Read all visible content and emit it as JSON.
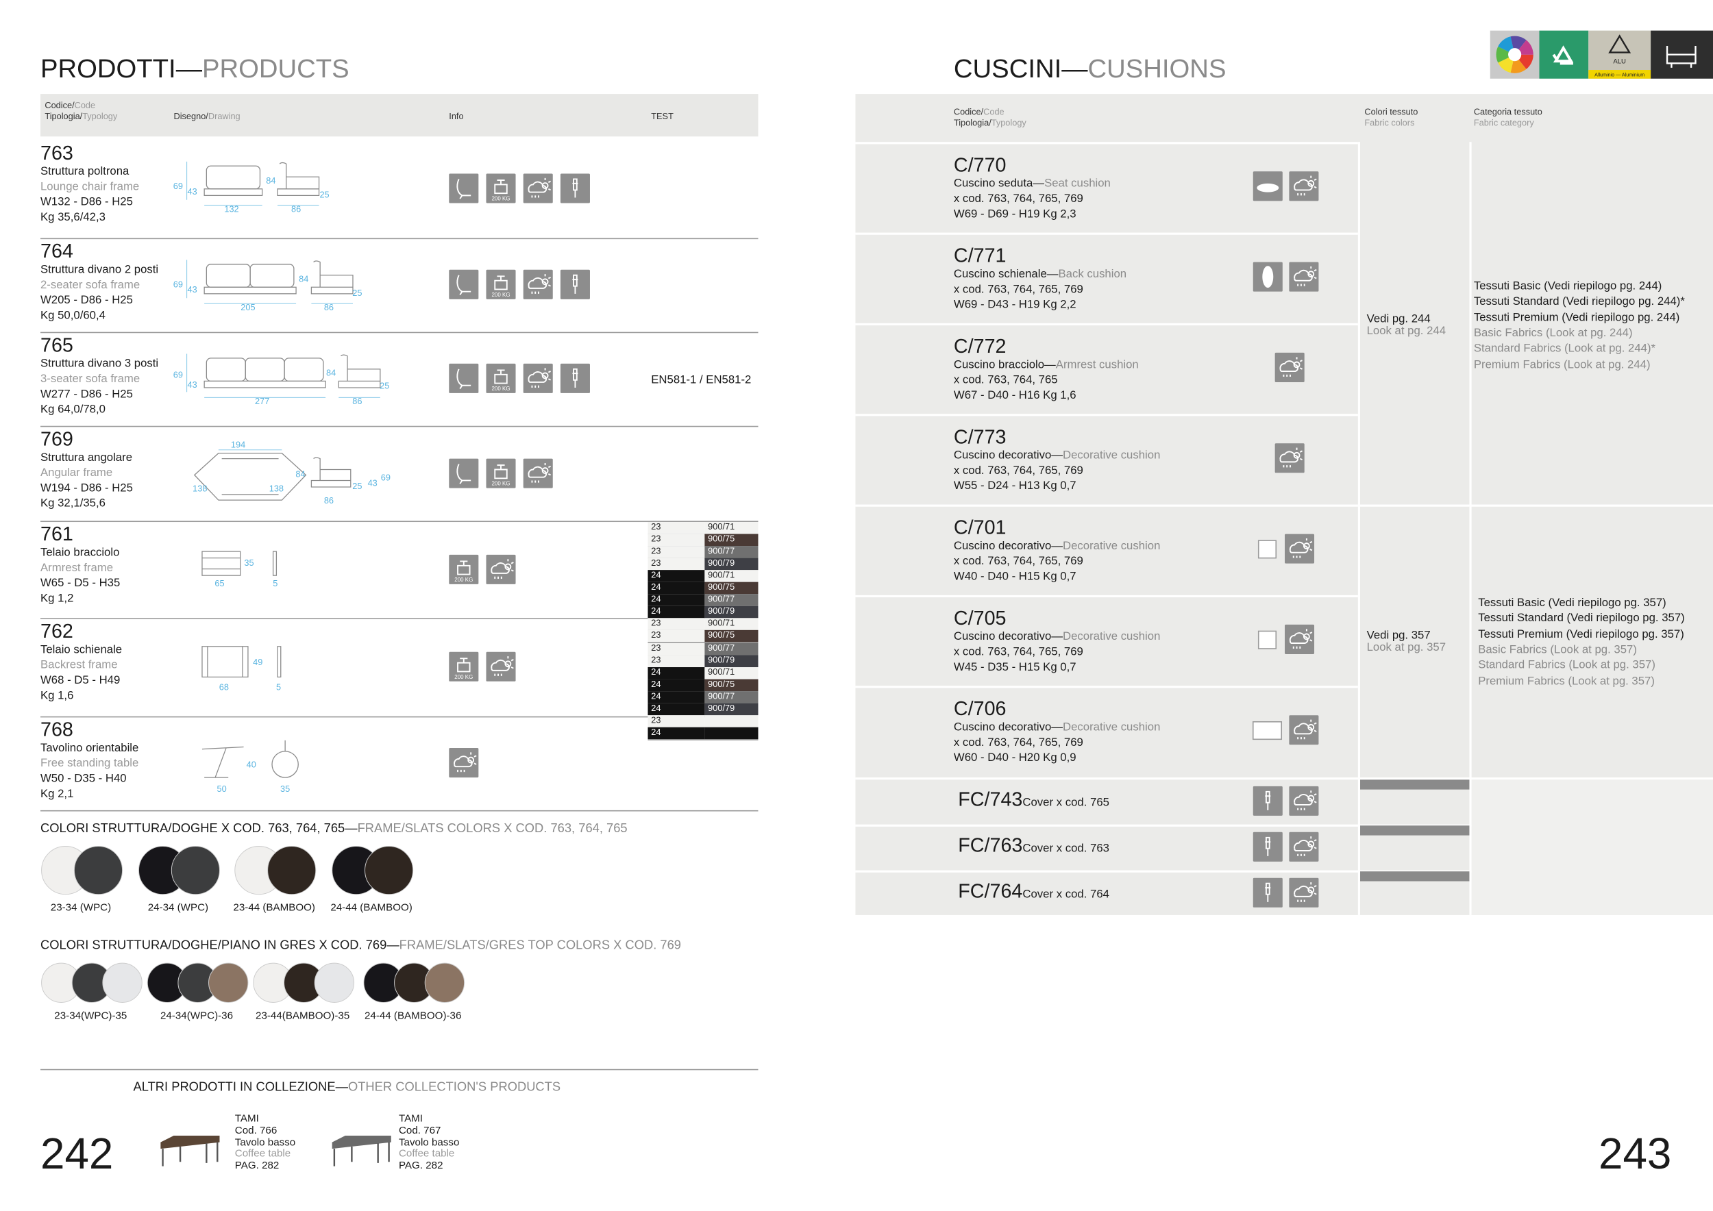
{
  "left": {
    "title": {
      "it": "PRODOTTI—",
      "en": "PRODUCTS"
    },
    "header": {
      "code_it": "Codice/",
      "code_en": "Code",
      "type_it": "Tipologia/",
      "type_en": "Typology",
      "drawing_it": "Disegno/",
      "drawing_en": "Drawing",
      "info": "Info",
      "test": "TEST"
    },
    "icon_load_label": "200 KG",
    "products": [
      {
        "code": "763",
        "name_it": "Struttura poltrona",
        "name_en": "Lounge chair frame",
        "dims": "W132 - D86 - H25",
        "weight": "Kg 35,6/42,3",
        "drawing_labels": [
          "69",
          "43",
          "132",
          "84",
          "25",
          "86"
        ],
        "icons": [
          "seat",
          "load",
          "weather",
          "pin"
        ]
      },
      {
        "code": "764",
        "name_it": "Struttura divano 2 posti",
        "name_en": "2-seater sofa frame",
        "dims": "W205 - D86 - H25",
        "weight": "Kg 50,0/60,4",
        "drawing_labels": [
          "69",
          "43",
          "205",
          "84",
          "25",
          "86"
        ],
        "icons": [
          "seat",
          "load",
          "weather",
          "pin"
        ]
      },
      {
        "code": "765",
        "name_it": "Struttura divano 3 posti",
        "name_en": "3-seater sofa frame",
        "dims": "W277 - D86 - H25",
        "weight": "Kg 64,0/78,0",
        "drawing_labels": [
          "69",
          "43",
          "277",
          "84",
          "25",
          "86"
        ],
        "icons": [
          "seat",
          "load",
          "weather",
          "pin"
        ],
        "test": "EN581-1 / EN581-2"
      },
      {
        "code": "769",
        "name_it": "Struttura angolare",
        "name_en": "Angular frame",
        "dims": "W194 - D86 - H25",
        "weight": "Kg 32,1/35,6",
        "drawing_labels": [
          "194",
          "138",
          "138",
          "84",
          "25",
          "43",
          "69",
          "86"
        ],
        "icons": [
          "seat",
          "load",
          "weather"
        ]
      },
      {
        "code": "761",
        "name_it": "Telaio bracciolo",
        "name_en": "Armrest frame",
        "dims": "W65 - D5 - H35",
        "weight": "Kg 1,2",
        "drawing_labels": [
          "35",
          "65",
          "5"
        ],
        "icons": [
          "load",
          "weather"
        ]
      },
      {
        "code": "762",
        "name_it": "Telaio schienale",
        "name_en": "Backrest frame",
        "dims": "W68 - D5 - H49",
        "weight": "Kg 1,6",
        "drawing_labels": [
          "49",
          "68",
          "5"
        ],
        "icons": [
          "load",
          "weather"
        ]
      },
      {
        "code": "768",
        "name_it": "Tavolino orientabile",
        "name_en": "Free standing table",
        "dims": "W50 - D35 - H40",
        "weight": "Kg 2,1",
        "drawing_labels": [
          "40",
          "50",
          "35"
        ],
        "icons": [
          "weather"
        ]
      }
    ],
    "finish_table": [
      [
        "23",
        "900/71"
      ],
      [
        "23",
        "900/75"
      ],
      [
        "23",
        "900/77"
      ],
      [
        "23",
        "900/79"
      ],
      [
        "24",
        "900/71"
      ],
      [
        "24",
        "900/75"
      ],
      [
        "24",
        "900/77"
      ],
      [
        "24",
        "900/79"
      ],
      [
        "23",
        "900/71"
      ],
      [
        "23",
        "900/75"
      ],
      [
        "23",
        "900/77"
      ],
      [
        "23",
        "900/79"
      ],
      [
        "24",
        "900/71"
      ],
      [
        "24",
        "900/75"
      ],
      [
        "24",
        "900/77"
      ],
      [
        "24",
        "900/79"
      ],
      [
        "23"
      ],
      [
        "24"
      ]
    ],
    "colors_1": {
      "title_it": "COLORI STRUTTURA/DOGHE X COD. 763, 764, 765—",
      "title_en": "FRAME/SLATS COLORS X COD. 763, 764, 765",
      "swatches": [
        {
          "label": "23-34 (WPC)",
          "colors": [
            "#f1f0ee",
            "#3c3d3e"
          ]
        },
        {
          "label": "24-34 (WPC)",
          "colors": [
            "#17161a",
            "#3c3d3e"
          ]
        },
        {
          "label": "23-44 (BAMBOO)",
          "colors": [
            "#f1f0ee",
            "#2f2620"
          ]
        },
        {
          "label": "24-44 (BAMBOO)",
          "colors": [
            "#17161a",
            "#2f2620"
          ]
        }
      ]
    },
    "colors_2": {
      "title_it": "COLORI STRUTTURA/DOGHE/PIANO IN GRES X COD. 769—",
      "title_en": "FRAME/SLATS/GRES TOP COLORS X COD. 769",
      "swatches": [
        {
          "label": "23-34(WPC)-35",
          "colors": [
            "#f1f0ee",
            "#3c3d3e",
            "#e6e7e9"
          ]
        },
        {
          "label": "24-34(WPC)-36",
          "colors": [
            "#17161a",
            "#3c3d3e",
            "#8b7463"
          ]
        },
        {
          "label": "23-44(BAMBOO)-35",
          "colors": [
            "#f1f0ee",
            "#2f2620",
            "#e6e7e9"
          ]
        },
        {
          "label": "24-44 (BAMBOO)-36",
          "colors": [
            "#17161a",
            "#2f2620",
            "#8b7463"
          ]
        }
      ]
    },
    "other": {
      "title_it": "ALTRI PRODOTTI IN COLLEZIONE—",
      "title_en": "OTHER COLLECTION'S PRODUCTS",
      "items": [
        {
          "name": "TAMI",
          "code": "Cod. 766",
          "type_it": "Tavolo basso",
          "type_en": "Coffee table",
          "page": "PAG. 282"
        },
        {
          "name": "TAMI",
          "code": "Cod. 767",
          "type_it": "Tavolo basso",
          "type_en": "Coffee table",
          "page": "PAG. 282"
        }
      ]
    },
    "page_number": "242"
  },
  "right": {
    "title": {
      "it": "CUSCINI—",
      "en": "CUSHIONS"
    },
    "header": {
      "code_it": "Codice/",
      "code_en": "Code",
      "type_it": "Tipologia/",
      "type_en": "Typology",
      "colors_it": "Colori tessuto",
      "colors_en": "Fabric colors",
      "category_it": "Categoria tessuto",
      "category_en": "Fabric category"
    },
    "badges": {
      "alu": "ALU",
      "alu_caption": "Alluminio — Aluminium"
    },
    "cushions": [
      {
        "code": "C/770",
        "name_it": "Cuscino seduta—",
        "name_en": "Seat cushion",
        "fits": "x cod. 763, 764, 765, 769",
        "dims": "W69 - D69 - H19  Kg 2,3",
        "icons": [
          "seat-cushion",
          "weather"
        ]
      },
      {
        "code": "C/771",
        "name_it": "Cuscino schienale—",
        "name_en": "Back cushion",
        "fits": "x cod. 763, 764, 765, 769",
        "dims": "W69 - D43 - H19  Kg 2,2",
        "icons": [
          "back-cushion",
          "weather"
        ]
      },
      {
        "code": "C/772",
        "name_it": "Cuscino bracciolo—",
        "name_en": "Armrest cushion",
        "fits": "x cod. 763, 764, 765",
        "dims": "W67 - D40 - H16  Kg 1,6",
        "icons": [
          "weather"
        ]
      },
      {
        "code": "C/773",
        "name_it": "Cuscino decorativo—",
        "name_en": "Decorative cushion",
        "fits": "x cod. 763, 764, 765, 769",
        "dims": "W55 - D24 - H13  Kg 0,7",
        "icons": [
          "weather"
        ]
      },
      {
        "code": "C/701",
        "name_it": "Cuscino decorativo—",
        "name_en": "Decorative cushion",
        "fits": "x cod. 763, 764, 765, 769",
        "dims": "W40 - D40 - H15  Kg 0,7",
        "icons": [
          "square",
          "weather"
        ]
      },
      {
        "code": "C/705",
        "name_it": "Cuscino decorativo—",
        "name_en": "Decorative cushion",
        "fits": "x cod. 763, 764, 765, 769",
        "dims": "W45 - D35 - H15  Kg 0,7",
        "icons": [
          "square",
          "weather"
        ]
      },
      {
        "code": "C/706",
        "name_it": "Cuscino decorativo—",
        "name_en": "Decorative cushion",
        "fits": "x cod. 763, 764, 765, 769",
        "dims": "W60 - D40 - H20  Kg 0,9",
        "icons": [
          "rect",
          "weather"
        ]
      }
    ],
    "covers": [
      {
        "code": "FC/743",
        "desc": "Cover x cod. 765"
      },
      {
        "code": "FC/763",
        "desc": "Cover x cod. 763"
      },
      {
        "code": "FC/764",
        "desc": "Cover x cod. 764"
      }
    ],
    "fabric_groups": [
      {
        "colors_it": "Vedi pg. 244",
        "colors_en": "Look at pg. 244",
        "categories_it": [
          "Tessuti Basic (Vedi riepilogo pg. 244)",
          "Tessuti Standard (Vedi riepilogo pg. 244)*",
          "Tessuti Premium (Vedi riepilogo pg. 244)"
        ],
        "categories_en": [
          "Basic Fabrics (Look at pg. 244)",
          "Standard Fabrics (Look at pg. 244)*",
          "Premium Fabrics (Look at pg. 244)"
        ]
      },
      {
        "colors_it": "Vedi pg. 357",
        "colors_en": "Look at pg. 357",
        "categories_it": [
          "Tessuti Basic (Vedi riepilogo pg. 357)",
          "Tessuti Standard (Vedi riepilogo pg. 357)",
          "Tessuti Premium (Vedi riepilogo pg. 357)"
        ],
        "categories_en": [
          "Basic Fabrics (Look at pg. 357)",
          "Standard Fabrics (Look at pg. 357)",
          "Premium Fabrics (Look at pg. 357)"
        ]
      }
    ],
    "page_number": "243"
  }
}
